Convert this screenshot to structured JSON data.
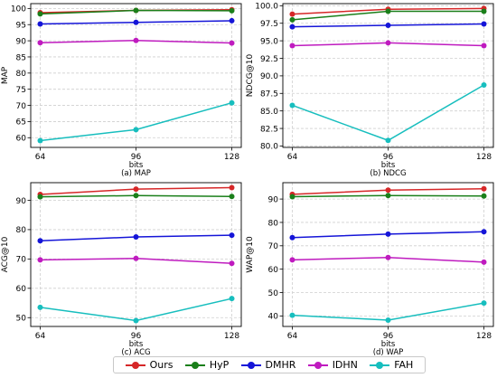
{
  "chart_data": [
    {
      "type": "line",
      "panel": "a",
      "caption": "(a) MAP",
      "xlabel": "bits",
      "ylabel": "MAP",
      "categories": [
        "64",
        "96",
        "128"
      ],
      "yticks": [
        "60",
        "65",
        "70",
        "75",
        "80",
        "85",
        "90",
        "95",
        "100"
      ],
      "ylim": [
        57,
        101.5
      ],
      "grid": true,
      "series": [
        {
          "name": "Ours",
          "values": [
            98.7,
            99.4,
            99.6
          ]
        },
        {
          "name": "HyP",
          "values": [
            98.3,
            99.4,
            99.3
          ]
        },
        {
          "name": "DMHR",
          "values": [
            95.2,
            95.7,
            96.2
          ]
        },
        {
          "name": "IDHN",
          "values": [
            89.4,
            90.1,
            89.3
          ]
        },
        {
          "name": "FAH",
          "values": [
            59.1,
            62.5,
            70.8
          ]
        }
      ]
    },
    {
      "type": "line",
      "panel": "b",
      "caption": "(b) NDCG",
      "xlabel": "bits",
      "ylabel": "NDCG@10",
      "categories": [
        "64",
        "96",
        "128"
      ],
      "yticks": [
        "80.0",
        "82.5",
        "85.0",
        "87.5",
        "90.0",
        "92.5",
        "95.0",
        "97.5",
        "100.0"
      ],
      "ylim": [
        79.8,
        100.3
      ],
      "grid": true,
      "series": [
        {
          "name": "Ours",
          "values": [
            98.8,
            99.5,
            99.6
          ]
        },
        {
          "name": "HyP",
          "values": [
            98.0,
            99.2,
            99.2
          ]
        },
        {
          "name": "DMHR",
          "values": [
            97.0,
            97.2,
            97.4
          ]
        },
        {
          "name": "IDHN",
          "values": [
            94.3,
            94.7,
            94.3
          ]
        },
        {
          "name": "FAH",
          "values": [
            85.8,
            80.8,
            88.7
          ]
        }
      ]
    },
    {
      "type": "line",
      "panel": "c",
      "caption": "(c) ACG",
      "xlabel": "bits",
      "ylabel": "ACG@10",
      "categories": [
        "64",
        "96",
        "128"
      ],
      "yticks": [
        "50",
        "60",
        "70",
        "80",
        "90"
      ],
      "ylim": [
        47,
        96
      ],
      "grid": true,
      "series": [
        {
          "name": "Ours",
          "values": [
            92.0,
            93.8,
            94.3
          ]
        },
        {
          "name": "HyP",
          "values": [
            91.2,
            91.6,
            91.3
          ]
        },
        {
          "name": "DMHR",
          "values": [
            76.2,
            77.5,
            78.1
          ]
        },
        {
          "name": "IDHN",
          "values": [
            69.7,
            70.2,
            68.5
          ]
        },
        {
          "name": "FAH",
          "values": [
            53.5,
            49.0,
            56.5
          ]
        }
      ]
    },
    {
      "type": "line",
      "panel": "d",
      "caption": "(d) WAP",
      "xlabel": "bits",
      "ylabel": "WAP@10",
      "categories": [
        "64",
        "96",
        "128"
      ],
      "yticks": [
        "40",
        "50",
        "60",
        "70",
        "80",
        "90"
      ],
      "ylim": [
        35.5,
        97
      ],
      "grid": true,
      "series": [
        {
          "name": "Ours",
          "values": [
            92.0,
            93.8,
            94.4
          ]
        },
        {
          "name": "HyP",
          "values": [
            91.0,
            91.5,
            91.3
          ]
        },
        {
          "name": "DMHR",
          "values": [
            73.5,
            75.0,
            76.0
          ]
        },
        {
          "name": "IDHN",
          "values": [
            64.0,
            65.0,
            63.0
          ]
        },
        {
          "name": "FAH",
          "values": [
            40.3,
            38.2,
            45.5
          ]
        }
      ]
    }
  ],
  "legend": {
    "placement": "bottom-center",
    "items": [
      {
        "name": "Ours",
        "color": "#d62728"
      },
      {
        "name": "HyP",
        "color": "#1a7f1a"
      },
      {
        "name": "DMHR",
        "color": "#1515d8"
      },
      {
        "name": "IDHN",
        "color": "#bf1bbf"
      },
      {
        "name": "FAH",
        "color": "#17bebe"
      }
    ]
  }
}
